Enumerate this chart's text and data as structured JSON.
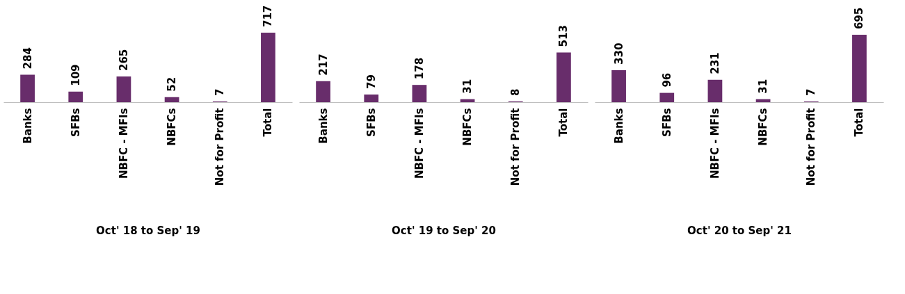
{
  "chart_data": [
    {
      "type": "bar",
      "xlabel": "Oct' 18 to Sep' 19",
      "categories": [
        "Banks",
        "SFBs",
        "NBFC - MFIs",
        "NBFCs",
        "Not for Profit",
        "Total"
      ],
      "values": [
        284,
        109,
        265,
        52,
        7,
        717
      ],
      "color": "#682d6b",
      "data_labels": true
    },
    {
      "type": "bar",
      "xlabel": "Oct' 19 to Sep' 20",
      "categories": [
        "Banks",
        "SFBs",
        "NBFC - MFIs",
        "NBFCs",
        "Not for Profit",
        "Total"
      ],
      "values": [
        217,
        79,
        178,
        31,
        8,
        513
      ],
      "color": "#682d6b",
      "data_labels": true
    },
    {
      "type": "bar",
      "xlabel": "Oct' 20 to Sep' 21",
      "categories": [
        "Banks",
        "SFBs",
        "NBFC - MFIs",
        "NBFCs",
        "Not for Profit",
        "Total"
      ],
      "values": [
        330,
        96,
        231,
        31,
        7,
        695
      ],
      "color": "#682d6b",
      "data_labels": true
    }
  ]
}
